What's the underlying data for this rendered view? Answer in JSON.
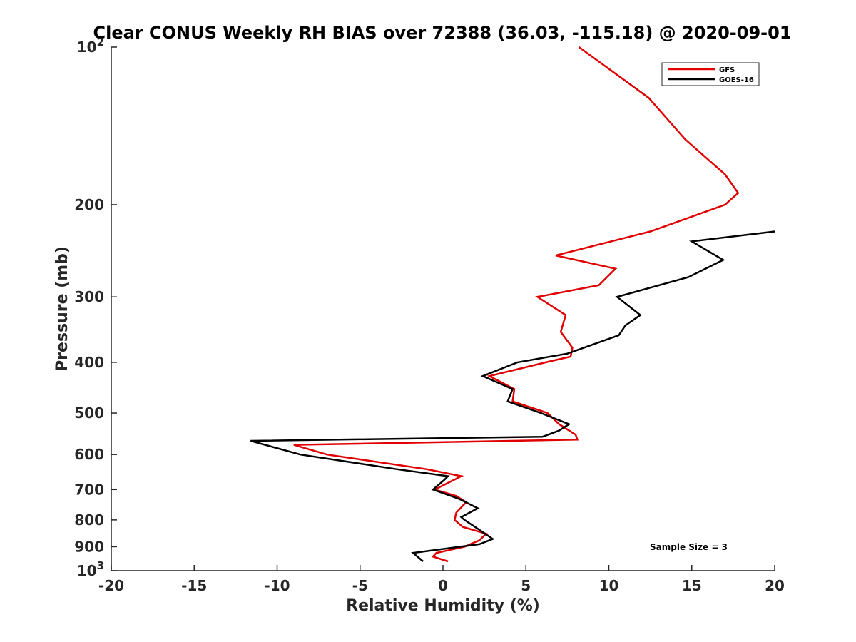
{
  "chart_data": {
    "type": "line",
    "title": "Clear CONUS Weekly RH BIAS over 72388 (36.03, -115.18) @ 2020-09-01",
    "xlabel": "Relative Humidity (%)",
    "ylabel": "Pressure (mb)",
    "xlim": [
      -20,
      20
    ],
    "ylim": [
      100,
      1000
    ],
    "y_scale": "log",
    "y_reversed": true,
    "grid": false,
    "legend_position": "top-right",
    "x_ticks": [
      "-20",
      "-15",
      "-10",
      "-5",
      "0",
      "5",
      "10",
      "15",
      "20"
    ],
    "y_ticks": [
      {
        "value": 100,
        "base": "10",
        "exp": "2"
      },
      {
        "value": 200,
        "label": "200"
      },
      {
        "value": 300,
        "label": "300"
      },
      {
        "value": 400,
        "label": "400"
      },
      {
        "value": 500,
        "label": "500"
      },
      {
        "value": 600,
        "label": "600"
      },
      {
        "value": 700,
        "label": "700"
      },
      {
        "value": 800,
        "label": "800"
      },
      {
        "value": 900,
        "label": "900"
      },
      {
        "value": 1000,
        "base": "10",
        "exp": "3"
      }
    ],
    "annotation": "Sample Size = 3",
    "series": [
      {
        "name": "GFS",
        "color": "#e00000",
        "points": [
          [
            8.2,
            100
          ],
          [
            12.4,
            125
          ],
          [
            14.6,
            150
          ],
          [
            17.0,
            175
          ],
          [
            17.8,
            190
          ],
          [
            17.0,
            200
          ],
          [
            12.5,
            225
          ],
          [
            6.8,
            250
          ],
          [
            10.4,
            265
          ],
          [
            9.4,
            285
          ],
          [
            5.7,
            300
          ],
          [
            7.4,
            325
          ],
          [
            7.1,
            350
          ],
          [
            7.8,
            375
          ],
          [
            7.7,
            390
          ],
          [
            6.2,
            400
          ],
          [
            2.8,
            425
          ],
          [
            4.3,
            450
          ],
          [
            4.2,
            475
          ],
          [
            6.3,
            500
          ],
          [
            7.0,
            525
          ],
          [
            8.0,
            550
          ],
          [
            8.1,
            562
          ],
          [
            -9.0,
            575
          ],
          [
            -7.0,
            600
          ],
          [
            -1.0,
            640
          ],
          [
            1.1,
            660
          ],
          [
            0.7,
            670
          ],
          [
            -0.5,
            700
          ],
          [
            0.8,
            720
          ],
          [
            1.4,
            740
          ],
          [
            0.8,
            775
          ],
          [
            0.7,
            800
          ],
          [
            1.2,
            825
          ],
          [
            2.6,
            850
          ],
          [
            2.2,
            875
          ],
          [
            1.3,
            900
          ],
          [
            -0.4,
            925
          ],
          [
            -0.6,
            940
          ],
          [
            0.3,
            960
          ]
        ]
      },
      {
        "name": "GOES-16",
        "color": "#000000",
        "points": [
          [
            20.0,
            225
          ],
          [
            15.0,
            235
          ],
          [
            16.9,
            255
          ],
          [
            14.8,
            275
          ],
          [
            10.5,
            300
          ],
          [
            11.9,
            325
          ],
          [
            11.0,
            340
          ],
          [
            10.6,
            355
          ],
          [
            7.5,
            385
          ],
          [
            4.5,
            400
          ],
          [
            2.4,
            425
          ],
          [
            4.2,
            450
          ],
          [
            3.9,
            475
          ],
          [
            5.9,
            500
          ],
          [
            7.6,
            525
          ],
          [
            7.0,
            540
          ],
          [
            6.0,
            555
          ],
          [
            -11.6,
            565
          ],
          [
            -8.6,
            600
          ],
          [
            -2.8,
            640
          ],
          [
            0.3,
            660
          ],
          [
            0.1,
            670
          ],
          [
            -0.6,
            700
          ],
          [
            1.0,
            730
          ],
          [
            2.1,
            760
          ],
          [
            1.1,
            790
          ],
          [
            1.3,
            800
          ],
          [
            2.3,
            840
          ],
          [
            3.0,
            870
          ],
          [
            2.2,
            890
          ],
          [
            -1.8,
            925
          ],
          [
            -1.2,
            960
          ]
        ]
      }
    ]
  }
}
